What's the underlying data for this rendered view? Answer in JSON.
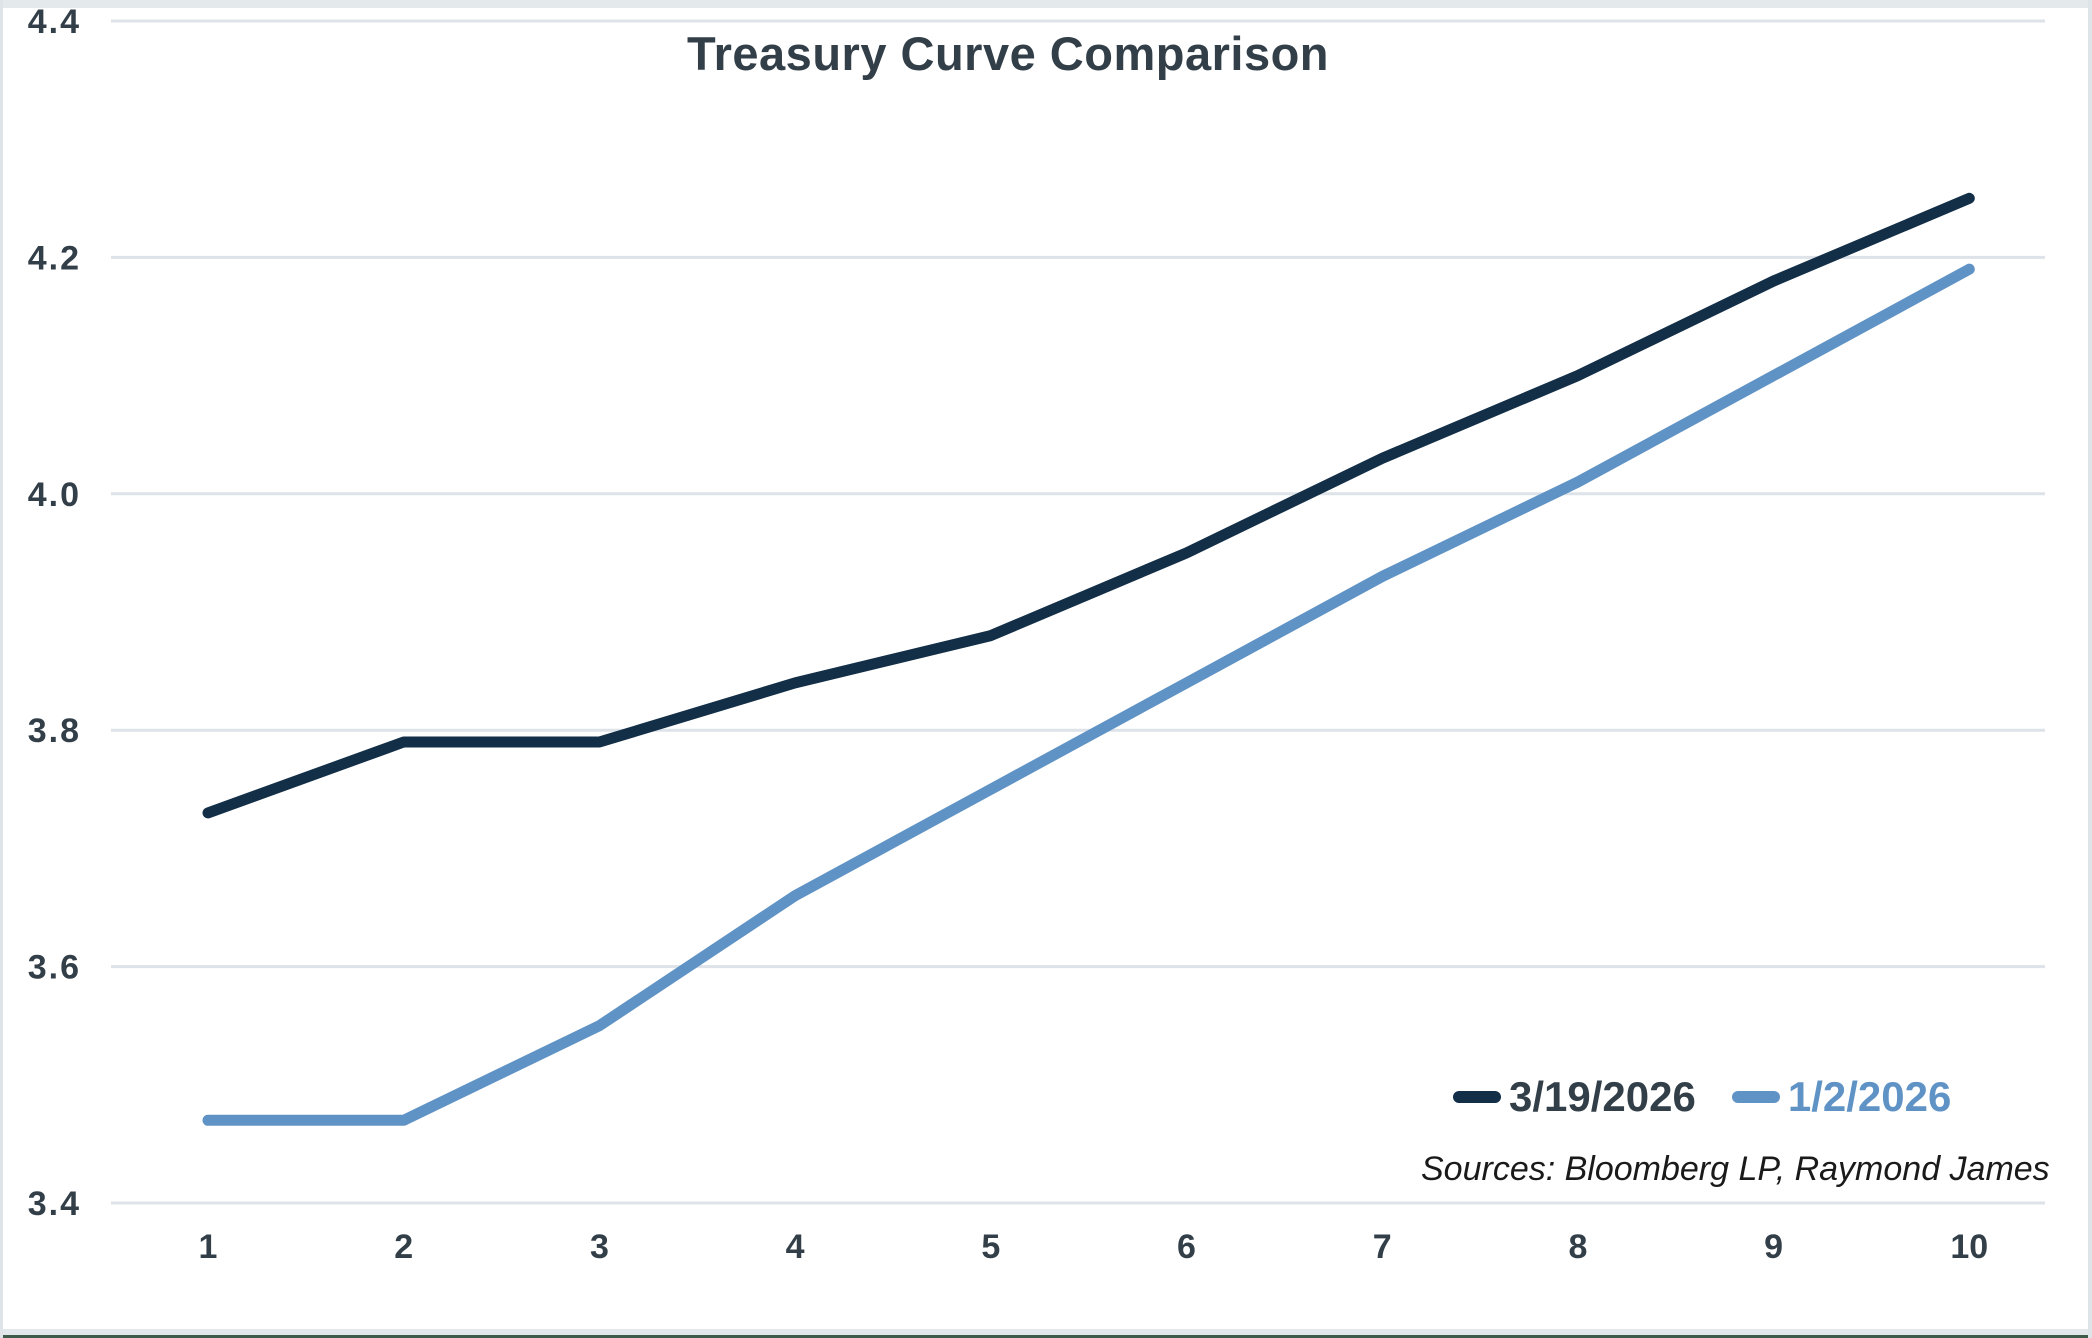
{
  "chart": {
    "title": "Treasury Curve Comparison",
    "sources_note": "Sources: Bloomberg LP, Raymond James",
    "legend": [
      {
        "name": "3/19/2026",
        "swatch_color": "#132E47",
        "label_color": "#333F48"
      },
      {
        "name": "1/2/2026",
        "swatch_color": "#6093C5",
        "label_color": "#6093C5"
      }
    ]
  },
  "chart_data": {
    "type": "line",
    "title": "Treasury Curve Comparison",
    "x": [
      1,
      2,
      3,
      4,
      5,
      6,
      7,
      8,
      9,
      10
    ],
    "x_tick_labels": [
      "1",
      "2",
      "3",
      "4",
      "5",
      "6",
      "7",
      "8",
      "9",
      "10"
    ],
    "y_tick_labels": [
      "3.4",
      "3.6",
      "3.8",
      "4.0",
      "4.2",
      "4.4"
    ],
    "xlim": [
      1,
      10
    ],
    "ylim": [
      3.4,
      4.4
    ],
    "grid": "horizontal-only",
    "legend_position": "inside-bottom-right",
    "series": [
      {
        "name": "3/19/2026",
        "color": "#132E47",
        "values": [
          3.73,
          3.79,
          3.79,
          3.84,
          3.88,
          3.95,
          4.03,
          4.1,
          4.18,
          4.25
        ]
      },
      {
        "name": "1/2/2026",
        "color": "#6093C5",
        "values": [
          3.47,
          3.47,
          3.55,
          3.66,
          3.75,
          3.84,
          3.93,
          4.01,
          4.1,
          4.19
        ]
      }
    ],
    "annotations": [
      "Sources: Bloomberg LP, Raymond James"
    ],
    "colors": {
      "grid": "#DDE3E8",
      "tick_text": "#333F48",
      "title_text": "#333F48",
      "sources_text": "#1A1A1A",
      "frame_strip": "#E4E9EC",
      "bottom_edge_green": "#3E5B49"
    }
  }
}
